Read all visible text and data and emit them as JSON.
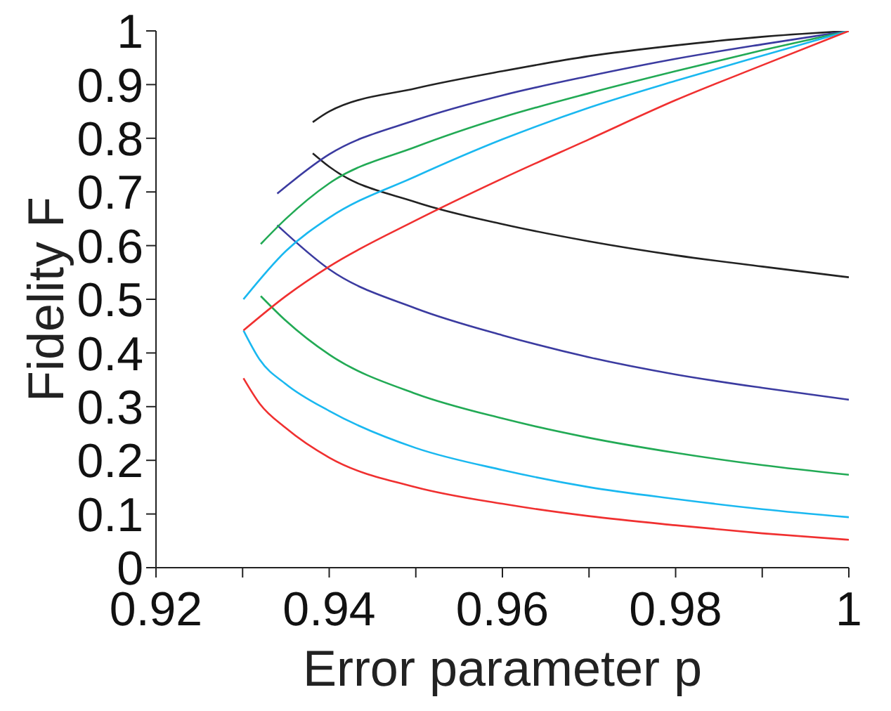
{
  "chart_data": {
    "type": "line",
    "xlabel": "Error parameter p",
    "ylabel": "Fidelity F",
    "xlim": [
      0.92,
      1
    ],
    "ylim": [
      0,
      1
    ],
    "xticks": [
      0.92,
      {
        "value": 0.93,
        "label": null
      },
      0.94,
      {
        "value": 0.95,
        "label": null
      },
      0.96,
      {
        "value": 0.97,
        "label": null
      },
      0.98,
      {
        "value": 0.99,
        "label": null
      },
      1
    ],
    "yticks": [
      0,
      0.1,
      0.2,
      0.3,
      0.4,
      0.5,
      0.6,
      0.7,
      0.8,
      0.9,
      1
    ],
    "series": [
      {
        "color": "#222222",
        "x": [
          0.9381,
          0.94,
          0.95,
          0.96,
          0.97,
          0.98,
          0.99,
          1
        ],
        "values": [
          0.83,
          0.85,
          0.893,
          0.925,
          0.953,
          0.973,
          0.989,
          1
        ]
      },
      {
        "color": "#222222",
        "x": [
          0.9381,
          0.94,
          0.95,
          0.96,
          0.97,
          0.98,
          0.99,
          1
        ],
        "values": [
          0.772,
          0.747,
          0.681,
          0.64,
          0.608,
          0.582,
          0.561,
          0.541
        ]
      },
      {
        "color": "#3b3ba0",
        "x": [
          0.934,
          0.94,
          0.95,
          0.96,
          0.97,
          0.98,
          0.99,
          1
        ],
        "values": [
          0.697,
          0.77,
          0.834,
          0.88,
          0.916,
          0.948,
          0.975,
          1
        ]
      },
      {
        "color": "#3b3ba0",
        "x": [
          0.934,
          0.94,
          0.95,
          0.96,
          0.97,
          0.98,
          0.99,
          1
        ],
        "values": [
          0.638,
          0.556,
          0.483,
          0.433,
          0.392,
          0.36,
          0.335,
          0.313
        ]
      },
      {
        "color": "#22aa55",
        "x": [
          0.9321,
          0.935,
          0.94,
          0.95,
          0.96,
          0.97,
          0.98,
          0.99,
          1
        ],
        "values": [
          0.603,
          0.65,
          0.716,
          0.784,
          0.839,
          0.884,
          0.925,
          0.964,
          1
        ]
      },
      {
        "color": "#22aa55",
        "x": [
          0.9321,
          0.935,
          0.94,
          0.95,
          0.96,
          0.97,
          0.98,
          0.99,
          1
        ],
        "values": [
          0.506,
          0.46,
          0.397,
          0.324,
          0.278,
          0.242,
          0.214,
          0.191,
          0.173
        ]
      },
      {
        "color": "#1ab8f0",
        "x": [
          0.9301,
          0.935,
          0.94,
          0.95,
          0.96,
          0.97,
          0.98,
          0.99,
          1
        ],
        "values": [
          0.5,
          0.59,
          0.652,
          0.729,
          0.798,
          0.857,
          0.907,
          0.954,
          1
        ]
      },
      {
        "color": "#1ab8f0",
        "x": [
          0.9301,
          0.932,
          0.935,
          0.94,
          0.95,
          0.96,
          0.97,
          0.98,
          0.99,
          1
        ],
        "values": [
          0.442,
          0.387,
          0.342,
          0.292,
          0.223,
          0.182,
          0.15,
          0.128,
          0.109,
          0.094
        ]
      },
      {
        "color": "#f03030",
        "x": [
          0.9301,
          0.935,
          0.94,
          0.95,
          0.96,
          0.97,
          0.98,
          0.99,
          1
        ],
        "values": [
          0.442,
          0.506,
          0.561,
          0.647,
          0.725,
          0.798,
          0.871,
          0.936,
          1
        ]
      },
      {
        "color": "#f03030",
        "x": [
          0.9301,
          0.932,
          0.935,
          0.94,
          0.95,
          0.96,
          0.97,
          0.98,
          0.99,
          1
        ],
        "values": [
          0.353,
          0.305,
          0.26,
          0.205,
          0.15,
          0.119,
          0.096,
          0.079,
          0.064,
          0.052
        ]
      }
    ]
  }
}
